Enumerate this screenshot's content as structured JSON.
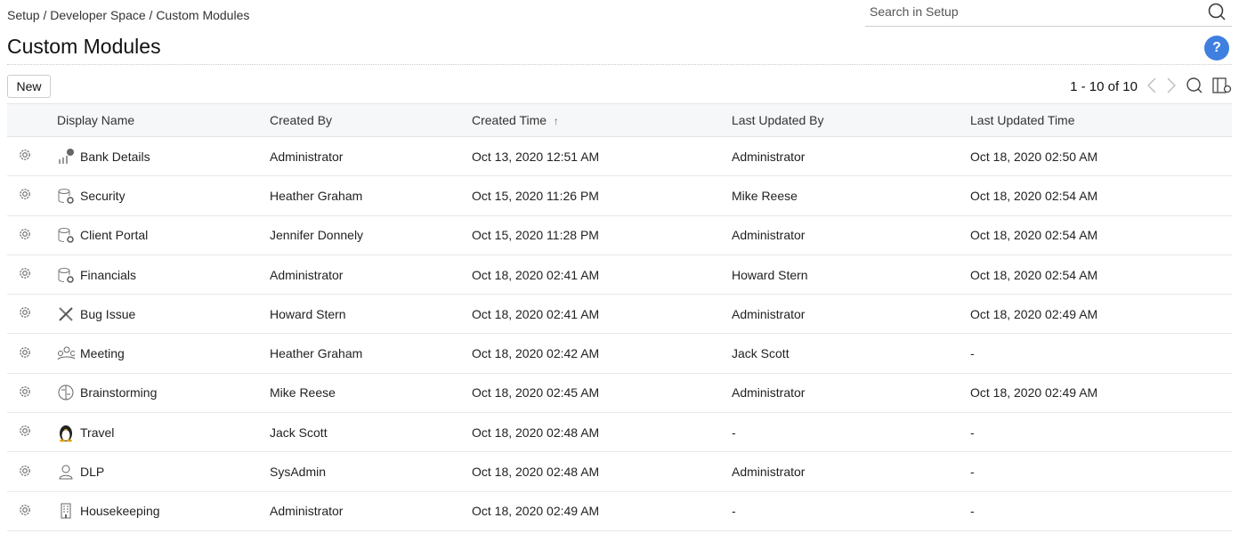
{
  "breadcrumb": "Setup / Developer Space / Custom Modules",
  "search": {
    "placeholder": "Search in Setup"
  },
  "title": "Custom Modules",
  "help_label": "?",
  "new_label": "New",
  "pager": {
    "count": "1 - 10 of 10"
  },
  "columns": [
    "Display Name",
    "Created By",
    "Created Time",
    "Last Updated By",
    "Last Updated Time"
  ],
  "sort_indicator": "↑",
  "rows": [
    {
      "icon": "chart-icon",
      "name": "Bank Details",
      "created_by": "Administrator",
      "created_time": "Oct 13, 2020 12:51 AM",
      "updated_by": "Administrator",
      "updated_time": "Oct 18, 2020 02:50 AM"
    },
    {
      "icon": "database-gear-icon",
      "name": "Security",
      "created_by": "Heather Graham",
      "created_time": "Oct 15, 2020 11:26 PM",
      "updated_by": "Mike Reese",
      "updated_time": "Oct 18, 2020 02:54 AM"
    },
    {
      "icon": "database-gear-icon",
      "name": "Client Portal",
      "created_by": "Jennifer Donnely",
      "created_time": "Oct 15, 2020 11:28 PM",
      "updated_by": "Administrator",
      "updated_time": "Oct 18, 2020 02:54 AM"
    },
    {
      "icon": "database-gear-icon",
      "name": "Financials",
      "created_by": "Administrator",
      "created_time": "Oct 18, 2020 02:41 AM",
      "updated_by": "Howard Stern",
      "updated_time": "Oct 18, 2020 02:54 AM"
    },
    {
      "icon": "tools-icon",
      "name": "Bug Issue",
      "created_by": "Howard Stern",
      "created_time": "Oct 18, 2020 02:41 AM",
      "updated_by": "Administrator",
      "updated_time": "Oct 18, 2020 02:49 AM"
    },
    {
      "icon": "meeting-icon",
      "name": "Meeting",
      "created_by": "Heather Graham",
      "created_time": "Oct 18, 2020 02:42 AM",
      "updated_by": "Jack Scott",
      "updated_time": "-"
    },
    {
      "icon": "brain-icon",
      "name": "Brainstorming",
      "created_by": "Mike Reese",
      "created_time": "Oct 18, 2020 02:45 AM",
      "updated_by": "Administrator",
      "updated_time": "Oct 18, 2020 02:49 AM"
    },
    {
      "icon": "penguin-icon",
      "name": "Travel",
      "created_by": "Jack Scott",
      "created_time": "Oct 18, 2020 02:48 AM",
      "updated_by": "-",
      "updated_time": "-"
    },
    {
      "icon": "user-icon",
      "name": "DLP",
      "created_by": "SysAdmin",
      "created_time": "Oct 18, 2020 02:48 AM",
      "updated_by": "Administrator",
      "updated_time": "-"
    },
    {
      "icon": "building-icon",
      "name": "Housekeeping",
      "created_by": "Administrator",
      "created_time": "Oct 18, 2020 02:49 AM",
      "updated_by": "-",
      "updated_time": "-"
    }
  ]
}
